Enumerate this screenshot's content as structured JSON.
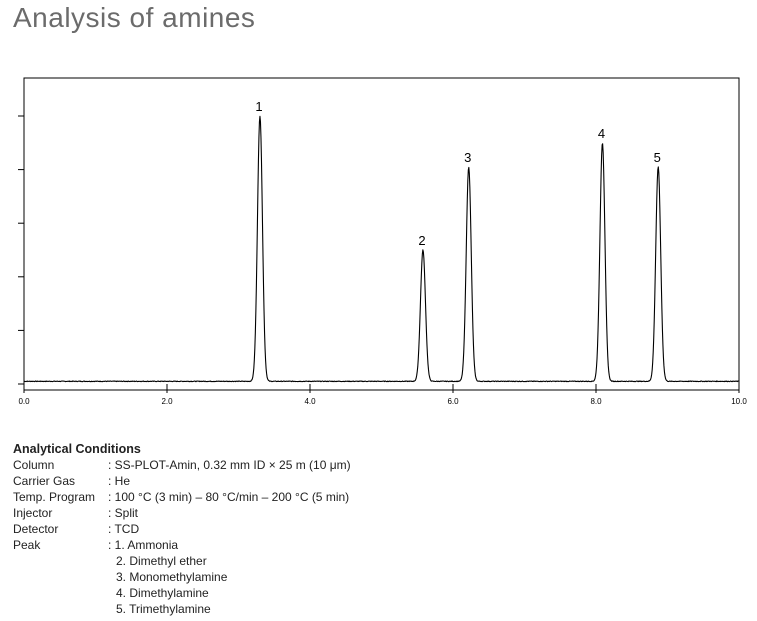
{
  "page_title": "Analysis of amines",
  "chart_data": {
    "type": "line",
    "title": "",
    "xlabel": "",
    "ylabel": "",
    "xlim": [
      0.0,
      10.0
    ],
    "ylim": [
      0,
      100
    ],
    "x_ticks": [
      0.0,
      2.0,
      4.0,
      6.0,
      8.0,
      10.0
    ],
    "x_tick_labels": [
      "0.0",
      "2.0",
      "4.0",
      "6.0",
      "8.0",
      "10.0"
    ],
    "y_ticks": [
      0,
      20,
      40,
      60,
      80,
      100
    ],
    "baseline": 1.0,
    "grid": false,
    "legend": "none",
    "line_color": "#000000",
    "peaks": [
      {
        "label": "1",
        "x": 3.3,
        "height": 100
      },
      {
        "label": "2",
        "x": 5.58,
        "height": 50
      },
      {
        "label": "3",
        "x": 6.22,
        "height": 81
      },
      {
        "label": "4",
        "x": 8.09,
        "height": 90
      },
      {
        "label": "5",
        "x": 8.87,
        "height": 81
      }
    ]
  },
  "conditions": {
    "heading": "Analytical Conditions",
    "rows": [
      {
        "label": "Column",
        "value": ": SS-PLOT-Amin, 0.32 mm ID × 25 m (10 μm)"
      },
      {
        "label": "Carrier Gas",
        "value": ": He"
      },
      {
        "label": "Temp. Program",
        "value": ": 100 °C (3 min) – 80 °C/min – 200 °C (5 min)"
      },
      {
        "label": "Injector",
        "value": ": Split"
      },
      {
        "label": "Detector",
        "value": ": TCD"
      },
      {
        "label": "Peak",
        "value": ": 1. Ammonia"
      }
    ],
    "peak_continuation": [
      "2. Dimethyl ether",
      "3. Monomethylamine",
      "4. Dimethylamine",
      "5. Trimethylamine"
    ]
  }
}
